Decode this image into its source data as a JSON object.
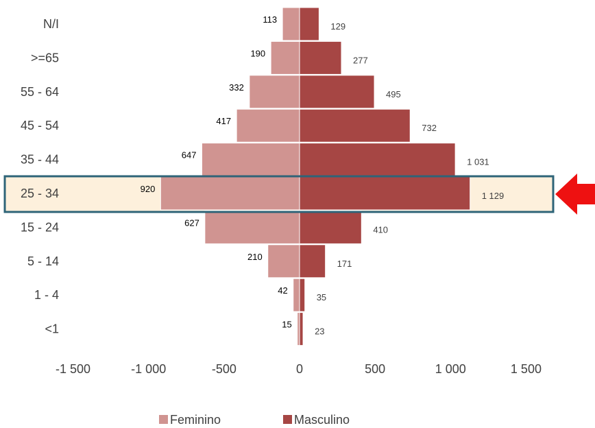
{
  "chart_data": {
    "type": "bar",
    "orientation": "horizontal",
    "categories": [
      "N/I",
      ">=65",
      "55 - 64",
      "45 - 54",
      "35 - 44",
      "25 - 34",
      "15 - 24",
      "5 - 14",
      "1 - 4",
      "<1"
    ],
    "series": [
      {
        "name": "Feminino",
        "color": "#d09491",
        "values": [
          -113,
          -190,
          -332,
          -417,
          -647,
          -920,
          -627,
          -210,
          -42,
          -15
        ],
        "labels": [
          "113",
          "190",
          "332",
          "417",
          "647",
          "920",
          "627",
          "210",
          "42",
          "15"
        ]
      },
      {
        "name": "Masculino",
        "color": "#a64644",
        "values": [
          129,
          277,
          495,
          732,
          1031,
          1129,
          410,
          171,
          35,
          23
        ],
        "labels": [
          "129",
          "277",
          "495",
          "732",
          "1 031",
          "1 129",
          "410",
          "171",
          "35",
          "23"
        ]
      }
    ],
    "xlim": [
      -1500,
      1500
    ],
    "xticks": [
      -1500,
      -1000,
      -500,
      0,
      500,
      1000,
      1500
    ],
    "xtick_labels": [
      "-1 500",
      "-1 000",
      "-500",
      "0",
      "500",
      "1 000",
      "1 500"
    ],
    "grid": false,
    "legend": "bottom",
    "highlight": {
      "category": "25 - 34",
      "fill": "#fdf0dc",
      "border": "#2e6478",
      "arrow_color": "#ee1111"
    }
  }
}
